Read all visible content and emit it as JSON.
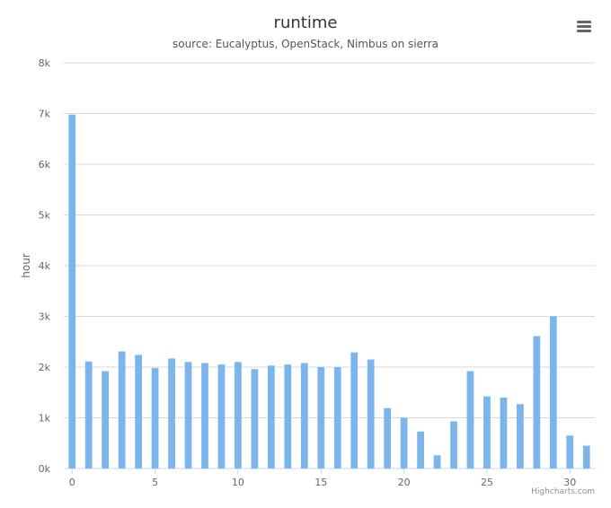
{
  "header": {
    "title": "runtime",
    "subtitle": "source: Eucalyptus, OpenStack, Nimbus on sierra",
    "menu_icon": "hamburger-menu-icon"
  },
  "credits": "Highcharts.com",
  "colors": {
    "bar": "#7cb5ec",
    "grid": "#d8d8d8",
    "text": "#333333",
    "axis_label": "#666666"
  },
  "chart_data": {
    "type": "bar",
    "title": "runtime",
    "subtitle": "source: Eucalyptus, OpenStack, Nimbus on sierra",
    "xlabel": "",
    "ylabel": "hour",
    "x": [
      0,
      1,
      2,
      3,
      4,
      5,
      6,
      7,
      8,
      9,
      10,
      11,
      12,
      13,
      14,
      15,
      16,
      17,
      18,
      19,
      20,
      21,
      22,
      23,
      24,
      25,
      26,
      27,
      28,
      29,
      30,
      31
    ],
    "values": [
      6980,
      2110,
      1920,
      2310,
      2240,
      1980,
      2170,
      2100,
      2080,
      2050,
      2100,
      1960,
      2030,
      2050,
      2080,
      2000,
      2000,
      2290,
      2150,
      1190,
      1000,
      730,
      260,
      930,
      1920,
      1420,
      1400,
      1270,
      2610,
      3000,
      650,
      450
    ],
    "xlim": [
      -0.5,
      31.5
    ],
    "ylim": [
      0,
      8000
    ],
    "yticks": [
      0,
      1000,
      2000,
      3000,
      4000,
      5000,
      6000,
      7000,
      8000
    ],
    "ytick_labels": [
      "0k",
      "1k",
      "2k",
      "3k",
      "4k",
      "5k",
      "6k",
      "7k",
      "8k"
    ],
    "xticks": [
      0,
      5,
      10,
      15,
      20,
      25,
      30
    ],
    "xtick_labels": [
      "0",
      "5",
      "10",
      "15",
      "20",
      "25",
      "30"
    ],
    "grid": true,
    "legend": "none"
  }
}
